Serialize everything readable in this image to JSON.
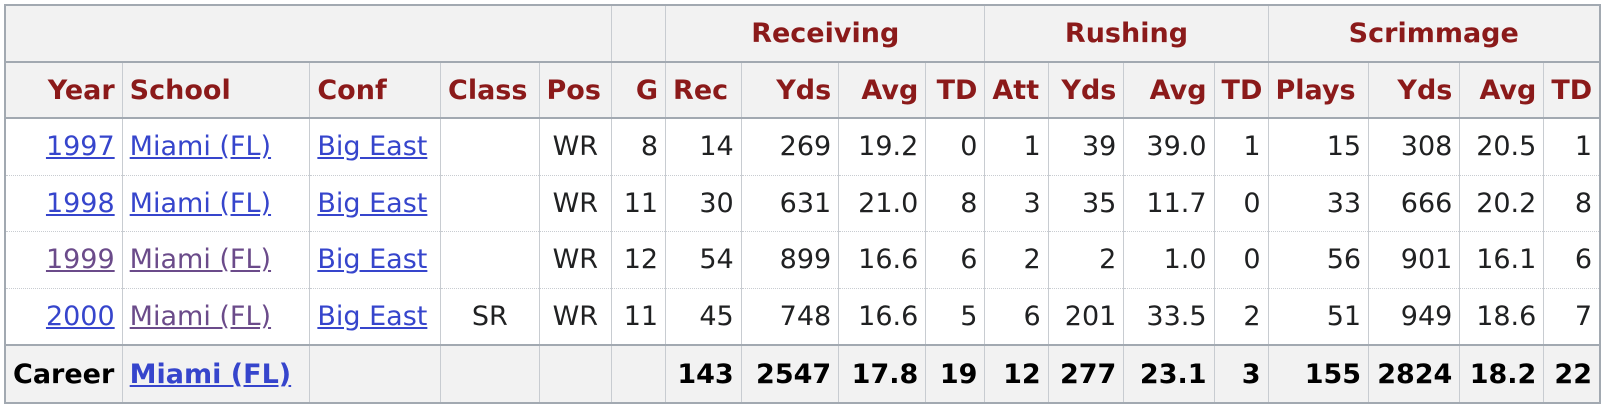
{
  "colors": {
    "header_text": "#8b1a1a",
    "header_bg": "#f2f2f2",
    "link": "#3645cc",
    "visited_link": "#6b4b8a",
    "border": "#a2a9b1"
  },
  "groups": {
    "receiving": "Receiving",
    "rushing": "Rushing",
    "scrimmage": "Scrimmage"
  },
  "columns": {
    "year": "Year",
    "school": "School",
    "conf": "Conf",
    "class": "Class",
    "pos": "Pos",
    "g": "G",
    "rec": "Rec",
    "rec_yds": "Yds",
    "rec_avg": "Avg",
    "rec_td": "TD",
    "att": "Att",
    "rush_yds": "Yds",
    "rush_avg": "Avg",
    "rush_td": "TD",
    "plays": "Plays",
    "scrim_yds": "Yds",
    "scrim_avg": "Avg",
    "scrim_td": "TD"
  },
  "rows": [
    {
      "year": "1997",
      "school": "Miami (FL)",
      "conf": "Big East",
      "class": "",
      "pos": "WR",
      "g": "8",
      "rec": "14",
      "rec_yds": "269",
      "rec_avg": "19.2",
      "rec_td": "0",
      "att": "1",
      "rush_yds": "39",
      "rush_avg": "39.0",
      "rush_td": "1",
      "plays": "15",
      "scrim_yds": "308",
      "scrim_avg": "20.5",
      "scrim_td": "1"
    },
    {
      "year": "1998",
      "school": "Miami (FL)",
      "conf": "Big East",
      "class": "",
      "pos": "WR",
      "g": "11",
      "rec": "30",
      "rec_yds": "631",
      "rec_avg": "21.0",
      "rec_td": "8",
      "att": "3",
      "rush_yds": "35",
      "rush_avg": "11.7",
      "rush_td": "0",
      "plays": "33",
      "scrim_yds": "666",
      "scrim_avg": "20.2",
      "scrim_td": "8"
    },
    {
      "year": "1999",
      "school": "Miami (FL)",
      "conf": "Big East",
      "class": "",
      "pos": "WR",
      "g": "12",
      "rec": "54",
      "rec_yds": "899",
      "rec_avg": "16.6",
      "rec_td": "6",
      "att": "2",
      "rush_yds": "2",
      "rush_avg": "1.0",
      "rush_td": "0",
      "plays": "56",
      "scrim_yds": "901",
      "scrim_avg": "16.1",
      "scrim_td": "6"
    },
    {
      "year": "2000",
      "school": "Miami (FL)",
      "conf": "Big East",
      "class": "SR",
      "pos": "WR",
      "g": "11",
      "rec": "45",
      "rec_yds": "748",
      "rec_avg": "16.6",
      "rec_td": "5",
      "att": "6",
      "rush_yds": "201",
      "rush_avg": "33.5",
      "rush_td": "2",
      "plays": "51",
      "scrim_yds": "949",
      "scrim_avg": "18.6",
      "scrim_td": "7"
    }
  ],
  "career": {
    "label": "Career",
    "school": "Miami (FL)",
    "rec": "143",
    "rec_yds": "2547",
    "rec_avg": "17.8",
    "rec_td": "19",
    "att": "12",
    "rush_yds": "277",
    "rush_avg": "23.1",
    "rush_td": "3",
    "plays": "155",
    "scrim_yds": "2824",
    "scrim_avg": "18.2",
    "scrim_td": "22"
  }
}
